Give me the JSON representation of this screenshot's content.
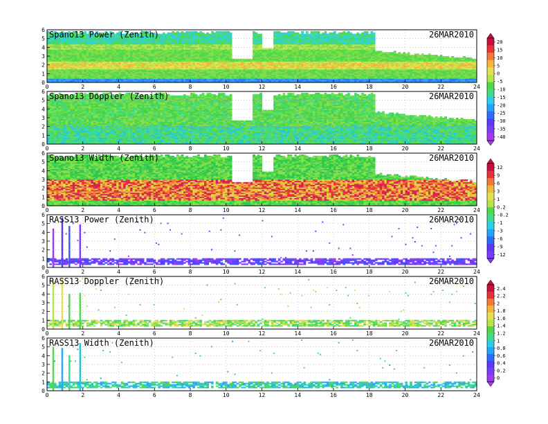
{
  "chart_data": [
    {
      "type": "heatmap",
      "title": "Spano13 Power (Zenith)",
      "date": "26MAR2010",
      "x_ticks": [
        "0",
        "2",
        "4",
        "6",
        "8",
        "10",
        "12",
        "14",
        "16",
        "18",
        "20",
        "22",
        "24"
      ],
      "y_ticks": [
        "0",
        "1",
        "2",
        "3",
        "4",
        "5",
        "6"
      ],
      "xlim": [
        0,
        24
      ],
      "ylim": [
        0,
        6
      ],
      "colorbar": [
        "20",
        "15",
        "10",
        "5",
        "0",
        "-5",
        "-10",
        "-15",
        "-20",
        "-25",
        "-30",
        "-35",
        "-40"
      ],
      "layers": [
        {
          "y": [
            0.0,
            0.3
          ],
          "value": "blue"
        },
        {
          "y": [
            0.3,
            1.5
          ],
          "value": "green"
        },
        {
          "y": [
            1.5,
            2.3
          ],
          "value": "yellow-orange"
        },
        {
          "y": [
            2.3,
            3.8
          ],
          "value": "green"
        },
        {
          "y": [
            3.8,
            5.5
          ],
          "value": "light-green/cyan"
        }
      ],
      "gaps": [
        {
          "x": [
            10.2,
            11.4
          ],
          "y": [
            2.8,
            6
          ]
        },
        {
          "x": [
            12.0,
            12.6
          ],
          "y": [
            4.0,
            6
          ]
        }
      ]
    },
    {
      "type": "heatmap",
      "title": "Spano13 Doppler (Zenith)",
      "date": "26MAR2010",
      "x_ticks": [
        "0",
        "2",
        "4",
        "6",
        "8",
        "10",
        "12",
        "14",
        "16",
        "18",
        "20",
        "22",
        "24"
      ],
      "y_ticks": [
        "0",
        "1",
        "2",
        "3",
        "4",
        "5",
        "6"
      ],
      "xlim": [
        0,
        24
      ],
      "ylim": [
        0,
        6
      ],
      "layers": [
        {
          "y": [
            0.0,
            2.0
          ],
          "value": "cyan-green"
        },
        {
          "y": [
            2.0,
            6.0
          ],
          "value": "green"
        }
      ],
      "gaps": [
        {
          "x": [
            10.2,
            11.4
          ],
          "y": [
            2.8,
            6
          ]
        },
        {
          "x": [
            12.0,
            12.6
          ],
          "y": [
            4.0,
            6
          ]
        }
      ]
    },
    {
      "type": "heatmap",
      "title": "Spano13 Width (Zenith)",
      "date": "26MAR2010",
      "x_ticks": [
        "0",
        "2",
        "4",
        "6",
        "8",
        "10",
        "12",
        "14",
        "16",
        "18",
        "20",
        "22",
        "24"
      ],
      "y_ticks": [
        "0",
        "1",
        "2",
        "3",
        "4",
        "5",
        "6"
      ],
      "xlim": [
        0,
        24
      ],
      "ylim": [
        0,
        6
      ],
      "colorbar": [
        "12",
        "9",
        "6",
        "3",
        "1",
        "0.2",
        "-0.2",
        "-1",
        "-3",
        "-6",
        "-9",
        "-12"
      ],
      "layers": [
        {
          "y": [
            0.0,
            0.6
          ],
          "value": "green"
        },
        {
          "y": [
            0.6,
            2.8
          ],
          "value": "orange-red"
        },
        {
          "y": [
            2.8,
            6.0
          ],
          "value": "green"
        }
      ],
      "gaps": [
        {
          "x": [
            10.2,
            11.4
          ],
          "y": [
            2.8,
            6
          ]
        },
        {
          "x": [
            12.0,
            12.6
          ],
          "y": [
            4.0,
            6
          ]
        }
      ]
    },
    {
      "type": "heatmap",
      "title": "RASS13 Power (Zenith)",
      "date": "26MAR2010",
      "x_ticks": [
        "0",
        "2",
        "4",
        "6",
        "8",
        "10",
        "12",
        "14",
        "16",
        "18",
        "20",
        "22",
        "24"
      ],
      "y_ticks": [
        "0",
        "1",
        "2",
        "3",
        "4",
        "5",
        "6"
      ],
      "xlim": [
        0,
        24
      ],
      "ylim": [
        0,
        6
      ],
      "layers": [
        {
          "y": [
            0.4,
            1.0
          ],
          "value": "purple"
        }
      ]
    },
    {
      "type": "heatmap",
      "title": "RASS13 Doppler (Zenith)",
      "date": "26MAR2010",
      "x_ticks": [
        "0",
        "2",
        "4",
        "6",
        "8",
        "10",
        "12",
        "14",
        "16",
        "18",
        "20",
        "22",
        "24"
      ],
      "y_ticks": [
        "0",
        "1",
        "2",
        "3",
        "4",
        "5",
        "6"
      ],
      "xlim": [
        0,
        24
      ],
      "ylim": [
        0,
        6
      ],
      "colorbar": [
        "2.4",
        "2.2",
        "2",
        "1.8",
        "1.6",
        "1.4",
        "1.2",
        "1",
        "0.8",
        "0.6",
        "0.4",
        "0.2",
        "0"
      ],
      "layers": [
        {
          "y": [
            0.4,
            1.0
          ],
          "value": "green"
        }
      ]
    },
    {
      "type": "heatmap",
      "title": "RASS13 Width (Zenith)",
      "date": "26MAR2010",
      "x_ticks": [
        "0",
        "2",
        "4",
        "6",
        "8",
        "10",
        "12",
        "14",
        "16",
        "18",
        "20",
        "22",
        "24"
      ],
      "y_ticks": [
        "0",
        "1",
        "2",
        "3",
        "4",
        "5",
        "6"
      ],
      "xlim": [
        0,
        24
      ],
      "ylim": [
        0,
        6
      ],
      "layers": [
        {
          "y": [
            0.4,
            1.0
          ],
          "value": "cyan-green"
        }
      ]
    }
  ]
}
